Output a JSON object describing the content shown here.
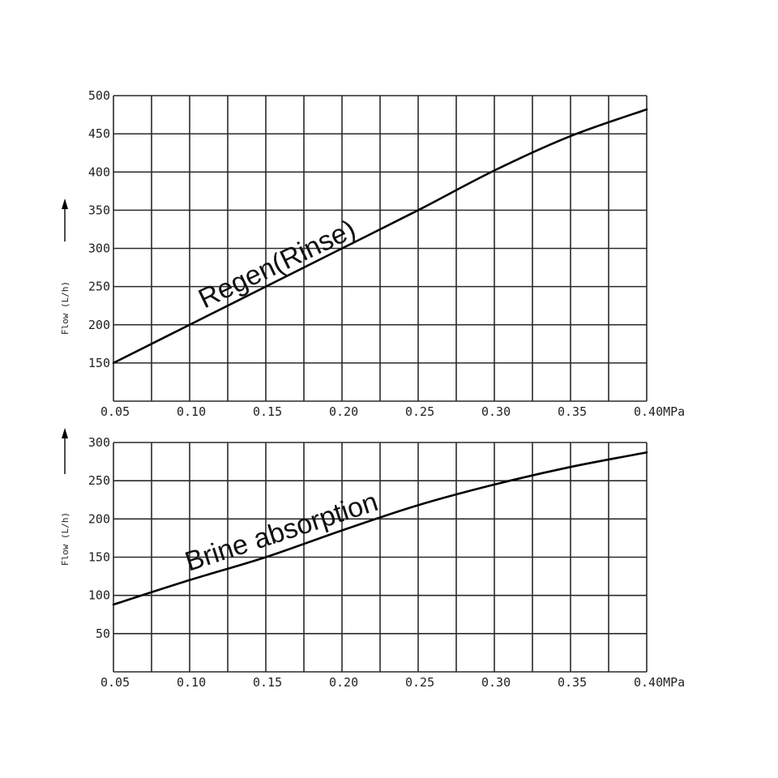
{
  "chart_data": [
    {
      "type": "line",
      "xlabel": "",
      "ylabel": "Flow (L/h)",
      "x_unit": "MPa",
      "xlim": [
        0.05,
        0.4
      ],
      "ylim": [
        100,
        500
      ],
      "x_ticks": [
        0.05,
        0.1,
        0.15,
        0.2,
        0.25,
        0.3,
        0.35,
        0.4
      ],
      "x_tick_labels": [
        "0.05",
        "0.10",
        "0.15",
        "0.20",
        "0.25",
        "0.30",
        "0.35",
        "0.40MPa"
      ],
      "y_ticks": [
        150,
        200,
        250,
        300,
        350,
        400,
        450,
        500
      ],
      "y_tick_labels": [
        "150",
        "200",
        "250",
        "300",
        "350",
        "400",
        "450",
        "500"
      ],
      "grid": true,
      "series": [
        {
          "name": "Regen(Rinse)",
          "x": [
            0.05,
            0.1,
            0.15,
            0.2,
            0.25,
            0.3,
            0.35,
            0.4
          ],
          "y": [
            150,
            200,
            250,
            300,
            350,
            402,
            447,
            482
          ]
        }
      ]
    },
    {
      "type": "line",
      "xlabel": "",
      "ylabel": "Flow (L/h)",
      "x_unit": "MPa",
      "xlim": [
        0.05,
        0.4
      ],
      "ylim": [
        0,
        300
      ],
      "x_ticks": [
        0.05,
        0.1,
        0.15,
        0.2,
        0.25,
        0.3,
        0.35,
        0.4
      ],
      "x_tick_labels": [
        "0.05",
        "0.10",
        "0.15",
        "0.20",
        "0.25",
        "0.30",
        "0.35",
        "0.40MPa"
      ],
      "y_ticks": [
        50,
        100,
        150,
        200,
        250,
        300
      ],
      "y_tick_labels": [
        "50",
        "100",
        "150",
        "200",
        "250",
        "300"
      ],
      "grid": true,
      "series": [
        {
          "name": "Brine absorption",
          "x": [
            0.05,
            0.1,
            0.15,
            0.2,
            0.25,
            0.3,
            0.35,
            0.4
          ],
          "y": [
            88,
            120,
            150,
            185,
            218,
            245,
            268,
            287
          ]
        }
      ]
    }
  ]
}
